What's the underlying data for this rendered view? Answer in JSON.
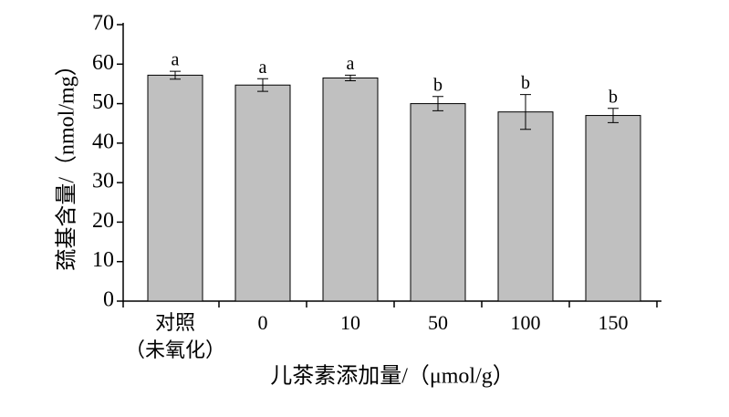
{
  "chart_data": {
    "type": "bar",
    "y_label": "巯基含量/（nmol/mg）",
    "x_label": "儿茶素添加量/（μmol/g）",
    "categories": [
      "对照\n（未氧化）",
      "0",
      "10",
      "50",
      "100",
      "150"
    ],
    "values": [
      57.2,
      54.7,
      56.5,
      50.0,
      47.9,
      47.0
    ],
    "errors": [
      1.0,
      1.6,
      0.7,
      1.8,
      4.4,
      1.8
    ],
    "labels": [
      "a",
      "a",
      "a",
      "b",
      "b",
      "b"
    ],
    "color": "#c0c0c0",
    "ylim": [
      0,
      70
    ],
    "yticks": [
      0,
      10,
      20,
      30,
      40,
      50,
      60,
      70
    ]
  }
}
